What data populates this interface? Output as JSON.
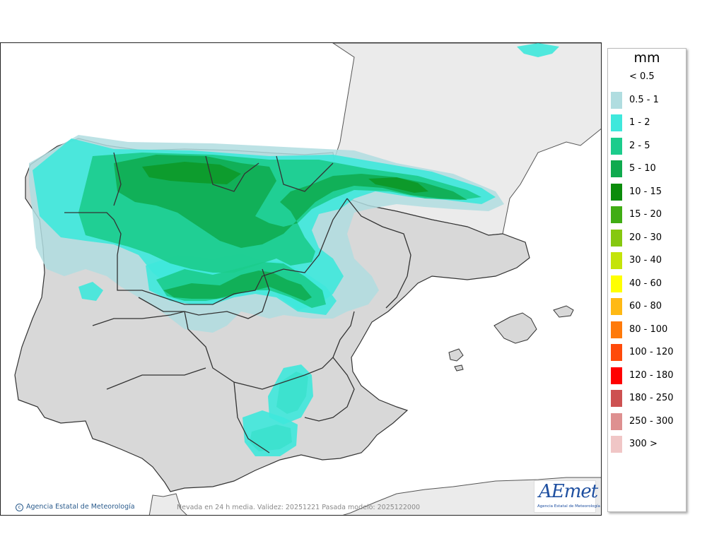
{
  "legend": {
    "unit": "mm",
    "items": [
      {
        "label": "< 0.5",
        "color": "#ffffff"
      },
      {
        "label": "0.5 - 1",
        "color": "#b0dde0"
      },
      {
        "label": "1 - 2",
        "color": "#3fe8dc"
      },
      {
        "label": "2 - 5",
        "color": "#1ccc8c"
      },
      {
        "label": "5 - 10",
        "color": "#0faa4e"
      },
      {
        "label": "10 - 15",
        "color": "#0b8c0b"
      },
      {
        "label": "15 - 20",
        "color": "#40ad14"
      },
      {
        "label": "20 - 30",
        "color": "#86c80f"
      },
      {
        "label": "30 - 40",
        "color": "#c4e40a"
      },
      {
        "label": "40 - 60",
        "color": "#ffff00"
      },
      {
        "label": "60 - 80",
        "color": "#ffb914"
      },
      {
        "label": "80 - 100",
        "color": "#ff7a0a"
      },
      {
        "label": "100 - 120",
        "color": "#ff4a0a"
      },
      {
        "label": "120 - 180",
        "color": "#ff0000"
      },
      {
        "label": "180 - 250",
        "color": "#cd5151"
      },
      {
        "label": "250 - 300",
        "color": "#de9090"
      },
      {
        "label": "300 >",
        "color": "#f0c6c6"
      }
    ]
  },
  "credit": {
    "icon": "copyright-icon",
    "text": "Agencia Estatal de Meteorología"
  },
  "caption": "Nevada en 24 h media. Validez: 20251221 Pasada modelo: 2025122000",
  "logo": {
    "word": "AEmet",
    "subtitle": "Agencia Estatal de Meteorología",
    "color": "#1e4fa0"
  },
  "map": {
    "land_color": "#d8d8d8",
    "foreign_land_color": "#ebebeb",
    "sea_color": "#ffffff",
    "border_color": "#333333"
  }
}
